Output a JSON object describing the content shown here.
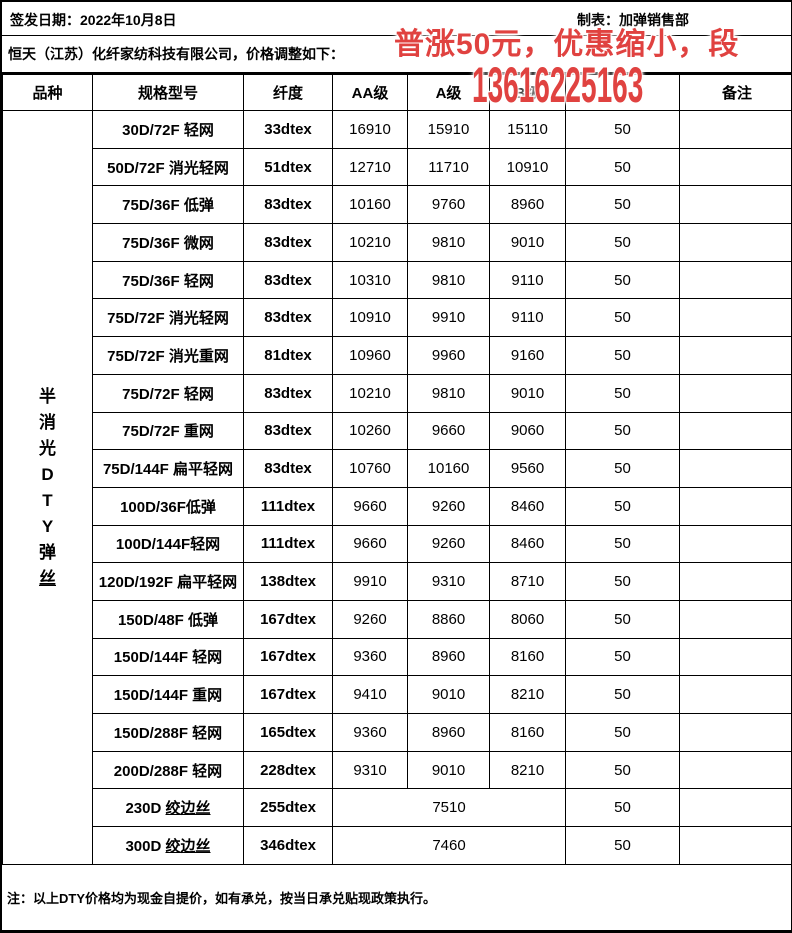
{
  "page": {
    "issue_date": "签发日期：2022年10月8日",
    "maker": "制表：加弹销售部",
    "company_line": "恒天（江苏）化纤家纺科技有限公司，价格调整如下：",
    "footnote": "注：以上DTY价格均为现金自提价，如有承兑，按当日承兑贴现政策执行。"
  },
  "overlay": {
    "line1": "普涨50元，优惠缩小，段",
    "line2": "13616225163",
    "color": "#e04240"
  },
  "table": {
    "headers": [
      "品种",
      "规格型号",
      "纤度",
      "AA级",
      "A级",
      "B级",
      "",
      "备注"
    ],
    "category": {
      "text": "半消光DTY弹丝",
      "chars": [
        "半",
        "消",
        "光",
        "D",
        "T",
        "Y",
        "弹",
        "丝"
      ],
      "underline_last": true
    },
    "rows": [
      {
        "spec": "30D/72F 轻网",
        "denier": "33dtex",
        "aa": "16910",
        "a": "15910",
        "b": "15110",
        "adj": "50",
        "remark": ""
      },
      {
        "spec": "50D/72F 消光轻网",
        "denier": "51dtex",
        "aa": "12710",
        "a": "11710",
        "b": "10910",
        "adj": "50",
        "remark": ""
      },
      {
        "spec": "75D/36F 低弹",
        "denier": "83dtex",
        "aa": "10160",
        "a": "9760",
        "b": "8960",
        "adj": "50",
        "remark": ""
      },
      {
        "spec": "75D/36F 微网",
        "denier": "83dtex",
        "aa": "10210",
        "a": "9810",
        "b": "9010",
        "adj": "50",
        "remark": ""
      },
      {
        "spec": "75D/36F 轻网",
        "denier": "83dtex",
        "aa": "10310",
        "a": "9810",
        "b": "9110",
        "adj": "50",
        "remark": ""
      },
      {
        "spec": "75D/72F 消光轻网",
        "denier": "83dtex",
        "aa": "10910",
        "a": "9910",
        "b": "9110",
        "adj": "50",
        "remark": ""
      },
      {
        "spec": "75D/72F 消光重网",
        "denier": "81dtex",
        "aa": "10960",
        "a": "9960",
        "b": "9160",
        "adj": "50",
        "remark": ""
      },
      {
        "spec": "75D/72F 轻网",
        "denier": "83dtex",
        "aa": "10210",
        "a": "9810",
        "b": "9010",
        "adj": "50",
        "remark": ""
      },
      {
        "spec": "75D/72F 重网",
        "denier": "83dtex",
        "aa": "10260",
        "a": "9660",
        "b": "9060",
        "adj": "50",
        "remark": ""
      },
      {
        "spec": "75D/144F 扁平轻网",
        "denier": "83dtex",
        "aa": "10760",
        "a": "10160",
        "b": "9560",
        "adj": "50",
        "remark": ""
      },
      {
        "spec": "100D/36F低弹",
        "denier": "111dtex",
        "aa": "9660",
        "a": "9260",
        "b": "8460",
        "adj": "50",
        "remark": ""
      },
      {
        "spec": "100D/144F轻网",
        "denier": "111dtex",
        "aa": "9660",
        "a": "9260",
        "b": "8460",
        "adj": "50",
        "remark": ""
      },
      {
        "spec": "120D/192F 扁平轻网",
        "denier": "138dtex",
        "aa": "9910",
        "a": "9310",
        "b": "8710",
        "adj": "50",
        "remark": ""
      },
      {
        "spec": "150D/48F 低弹",
        "denier": "167dtex",
        "aa": "9260",
        "a": "8860",
        "b": "8060",
        "adj": "50",
        "remark": ""
      },
      {
        "spec": "150D/144F 轻网",
        "denier": "167dtex",
        "aa": "9360",
        "a": "8960",
        "b": "8160",
        "adj": "50",
        "remark": ""
      },
      {
        "spec": "150D/144F 重网",
        "denier": "167dtex",
        "aa": "9410",
        "a": "9010",
        "b": "8210",
        "adj": "50",
        "remark": ""
      },
      {
        "spec": "150D/288F 轻网",
        "denier": "165dtex",
        "aa": "9360",
        "a": "8960",
        "b": "8160",
        "adj": "50",
        "remark": ""
      },
      {
        "spec": "200D/288F 轻网",
        "denier": "228dtex",
        "aa": "9310",
        "a": "9010",
        "b": "8210",
        "adj": "50",
        "remark": ""
      },
      {
        "spec": "230D ",
        "spec_underline": "绞边丝",
        "denier": "255dtex",
        "merged": "7510",
        "adj": "50",
        "remark": ""
      },
      {
        "spec": "300D ",
        "spec_underline": "绞边丝",
        "denier": "346dtex",
        "merged": "7460",
        "adj": "50",
        "remark": ""
      }
    ]
  }
}
